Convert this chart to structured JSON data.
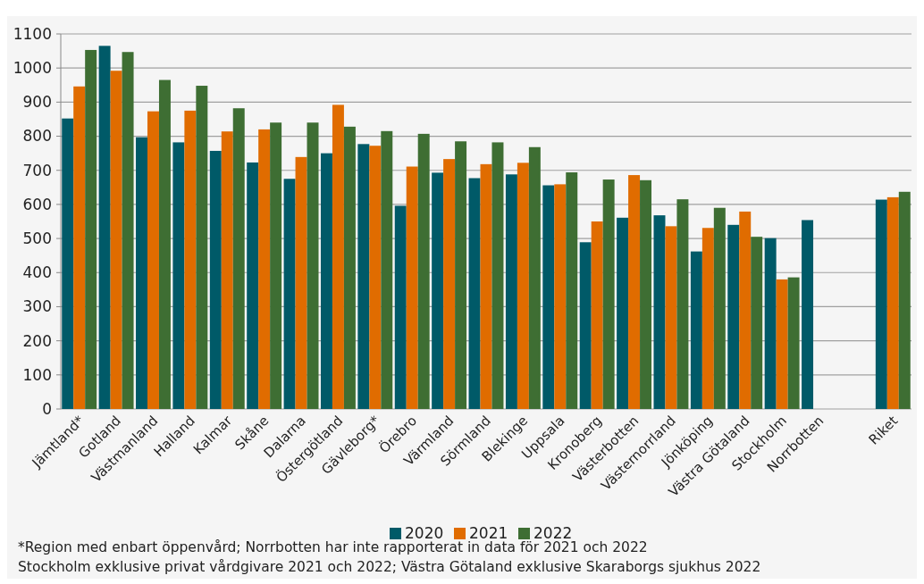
{
  "chart_data": {
    "type": "bar",
    "categories": [
      "Jämtland*",
      "Gotland",
      "Västmanland",
      "Halland",
      "Kalmar",
      "Skåne",
      "Dalarna",
      "Östergötland",
      "Gävleborg*",
      "Örebro",
      "Värmland",
      "Sörmland",
      "Blekinge",
      "Uppsala",
      "Kronoberg",
      "Västerbotten",
      "Västernorrland",
      "Jönköping",
      "Västra Götaland",
      "Stockholm",
      "Norrbotten",
      null,
      "Riket"
    ],
    "series": [
      {
        "name": "2020",
        "color": "#005a68",
        "values": [
          852,
          1065,
          797,
          782,
          757,
          723,
          675,
          750,
          777,
          596,
          693,
          677,
          688,
          656,
          489,
          561,
          568,
          462,
          540,
          501,
          554,
          null,
          614
        ]
      },
      {
        "name": "2021",
        "color": "#e06c00",
        "values": [
          946,
          992,
          873,
          875,
          814,
          820,
          739,
          892,
          772,
          711,
          733,
          718,
          722,
          659,
          550,
          686,
          536,
          531,
          579,
          380,
          null,
          null,
          621
        ]
      },
      {
        "name": "2022",
        "color": "#3e6e33",
        "values": [
          1053,
          1047,
          965,
          948,
          882,
          840,
          840,
          828,
          815,
          807,
          785,
          782,
          768,
          694,
          673,
          671,
          615,
          590,
          505,
          386,
          null,
          null,
          637
        ]
      }
    ],
    "ylim": [
      0,
      1100
    ],
    "yticks": [
      0,
      100,
      200,
      300,
      400,
      500,
      600,
      700,
      800,
      900,
      1000,
      1100
    ],
    "grid": "y",
    "legend": "bottom",
    "annotations": [
      "*Region med enbart öppenvård; Norrbotten har inte rapporterat in data för 2021 och 2022",
      "Stockholm exklusive privat vårdgivare 2021 och 2022; Västra Götaland exklusive Skaraborgs sjukhus 2022"
    ]
  }
}
